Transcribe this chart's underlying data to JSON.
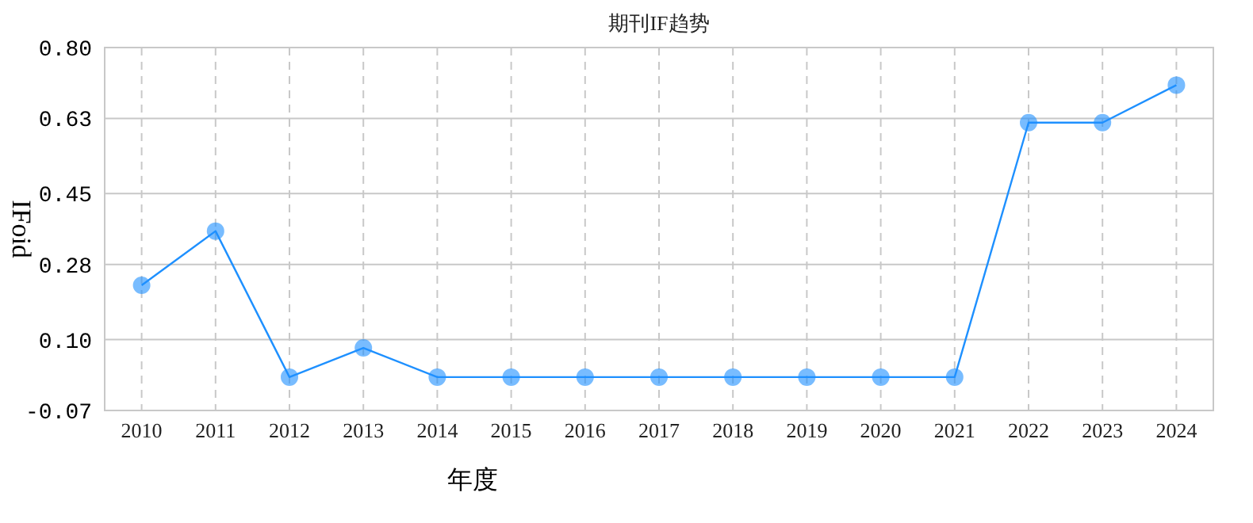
{
  "chart_data": {
    "type": "line",
    "title": "期刊IF趋势",
    "xlabel": "年度",
    "ylabel": "IFoid",
    "categories": [
      "2010",
      "2011",
      "2012",
      "2013",
      "2014",
      "2015",
      "2016",
      "2017",
      "2018",
      "2019",
      "2020",
      "2021",
      "2022",
      "2023",
      "2024"
    ],
    "series": [
      {
        "color": "#1e90ff",
        "values": [
          0.23,
          0.36,
          0.01,
          0.08,
          0.01,
          0.01,
          0.01,
          0.01,
          0.01,
          0.01,
          0.01,
          0.01,
          0.62,
          0.62,
          0.71
        ]
      }
    ],
    "ylim": [
      -0.07,
      0.8
    ],
    "yticks": [
      -0.07,
      {
        "value": 0.1,
        "label": "0.10"
      },
      0.28,
      0.45,
      0.63,
      {
        "value": 0.8,
        "label": "0.80"
      }
    ],
    "grid": true,
    "marker": "circle",
    "line_style": "solid"
  }
}
